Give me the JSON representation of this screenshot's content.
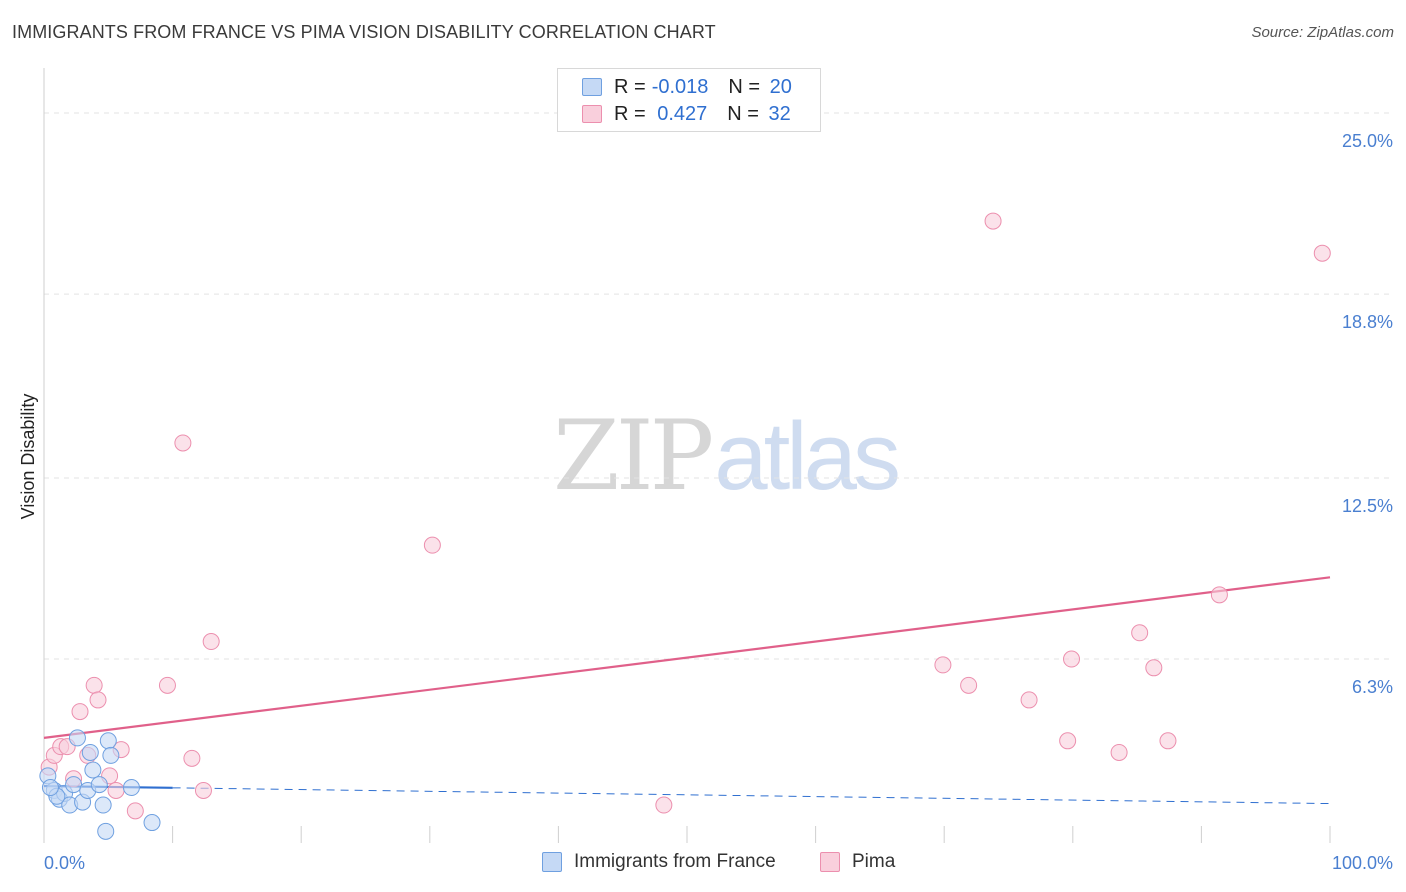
{
  "header": {
    "title": "IMMIGRANTS FROM FRANCE VS PIMA VISION DISABILITY CORRELATION CHART",
    "source": "Source: ZipAtlas.com"
  },
  "watermark": {
    "zip": "ZIP",
    "atlas": "atlas"
  },
  "legend_top": {
    "rows": [
      {
        "r_label": "R = ",
        "r_value": "-0.018",
        "n_label": "N = ",
        "n_value": "20"
      },
      {
        "r_label": "R = ",
        "r_value": " 0.427",
        "n_label": "N = ",
        "n_value": "32"
      }
    ]
  },
  "legend_bottom": {
    "items": [
      "Immigrants from France",
      "Pima"
    ]
  },
  "colors": {
    "blue_fill": "#c5d9f5",
    "blue_stroke": "#6fa0e0",
    "blue_line": "#2f6fd0",
    "pink_fill": "#f9cfdc",
    "pink_stroke": "#ec8fae",
    "pink_line": "#e0608a",
    "grid": "#e3e3e3",
    "axis_text": "#4a7fd0"
  },
  "chart_data": {
    "type": "scatter",
    "title": "IMMIGRANTS FROM FRANCE VS PIMA VISION DISABILITY CORRELATION CHART",
    "xlabel": "",
    "ylabel": "Vision Disability",
    "xlim": [
      0,
      100
    ],
    "ylim": [
      0,
      26.2
    ],
    "x_tick_labels": [
      "0.0%",
      "100.0%"
    ],
    "y_ticks": [
      6.3,
      12.5,
      18.8,
      25.0
    ],
    "y_tick_labels": [
      "6.3%",
      "12.5%",
      "18.8%",
      "25.0%"
    ],
    "grid": true,
    "legend_placement": "top-center",
    "series": [
      {
        "name": "Immigrants from France",
        "r": -0.018,
        "n": 20,
        "points": [
          {
            "x": 0.3,
            "y": 2.3
          },
          {
            "x": 0.8,
            "y": 1.8
          },
          {
            "x": 1.2,
            "y": 1.5
          },
          {
            "x": 1.6,
            "y": 1.7
          },
          {
            "x": 2.0,
            "y": 1.3
          },
          {
            "x": 2.3,
            "y": 2.0
          },
          {
            "x": 2.6,
            "y": 3.6
          },
          {
            "x": 3.0,
            "y": 1.4
          },
          {
            "x": 3.4,
            "y": 1.8
          },
          {
            "x": 3.6,
            "y": 3.1
          },
          {
            "x": 3.8,
            "y": 2.5
          },
          {
            "x": 4.3,
            "y": 2.0
          },
          {
            "x": 4.6,
            "y": 1.3
          },
          {
            "x": 4.8,
            "y": 0.4
          },
          {
            "x": 5.0,
            "y": 3.5
          },
          {
            "x": 5.2,
            "y": 3.0
          },
          {
            "x": 6.8,
            "y": 1.9
          },
          {
            "x": 8.4,
            "y": 0.7
          },
          {
            "x": 1.0,
            "y": 1.6
          },
          {
            "x": 0.5,
            "y": 1.9
          }
        ],
        "trend": {
          "x0": 0,
          "y0": 1.95,
          "x1": 100,
          "y1": 1.35,
          "solid_until_x": 10
        }
      },
      {
        "name": "Pima",
        "r": 0.427,
        "n": 32,
        "points": [
          {
            "x": 0.4,
            "y": 2.6
          },
          {
            "x": 0.8,
            "y": 3.0
          },
          {
            "x": 1.3,
            "y": 3.3
          },
          {
            "x": 1.8,
            "y": 3.3
          },
          {
            "x": 2.3,
            "y": 2.2
          },
          {
            "x": 2.8,
            "y": 4.5
          },
          {
            "x": 3.4,
            "y": 3.0
          },
          {
            "x": 3.9,
            "y": 5.4
          },
          {
            "x": 4.2,
            "y": 4.9
          },
          {
            "x": 5.1,
            "y": 2.3
          },
          {
            "x": 5.6,
            "y": 1.8
          },
          {
            "x": 6.0,
            "y": 3.2
          },
          {
            "x": 7.1,
            "y": 1.1
          },
          {
            "x": 9.6,
            "y": 5.4
          },
          {
            "x": 10.8,
            "y": 13.7
          },
          {
            "x": 11.5,
            "y": 2.9
          },
          {
            "x": 12.4,
            "y": 1.8
          },
          {
            "x": 13.0,
            "y": 6.9
          },
          {
            "x": 30.2,
            "y": 10.2
          },
          {
            "x": 48.2,
            "y": 1.3
          },
          {
            "x": 69.9,
            "y": 6.1
          },
          {
            "x": 71.9,
            "y": 5.4
          },
          {
            "x": 73.8,
            "y": 21.3
          },
          {
            "x": 76.6,
            "y": 4.9
          },
          {
            "x": 79.6,
            "y": 3.5
          },
          {
            "x": 79.9,
            "y": 6.3
          },
          {
            "x": 83.6,
            "y": 3.1
          },
          {
            "x": 85.2,
            "y": 7.2
          },
          {
            "x": 86.3,
            "y": 6.0
          },
          {
            "x": 87.4,
            "y": 3.5
          },
          {
            "x": 91.4,
            "y": 8.5
          },
          {
            "x": 99.4,
            "y": 20.2
          }
        ],
        "trend": {
          "x0": 0,
          "y0": 3.6,
          "x1": 100,
          "y1": 9.1
        }
      }
    ]
  }
}
